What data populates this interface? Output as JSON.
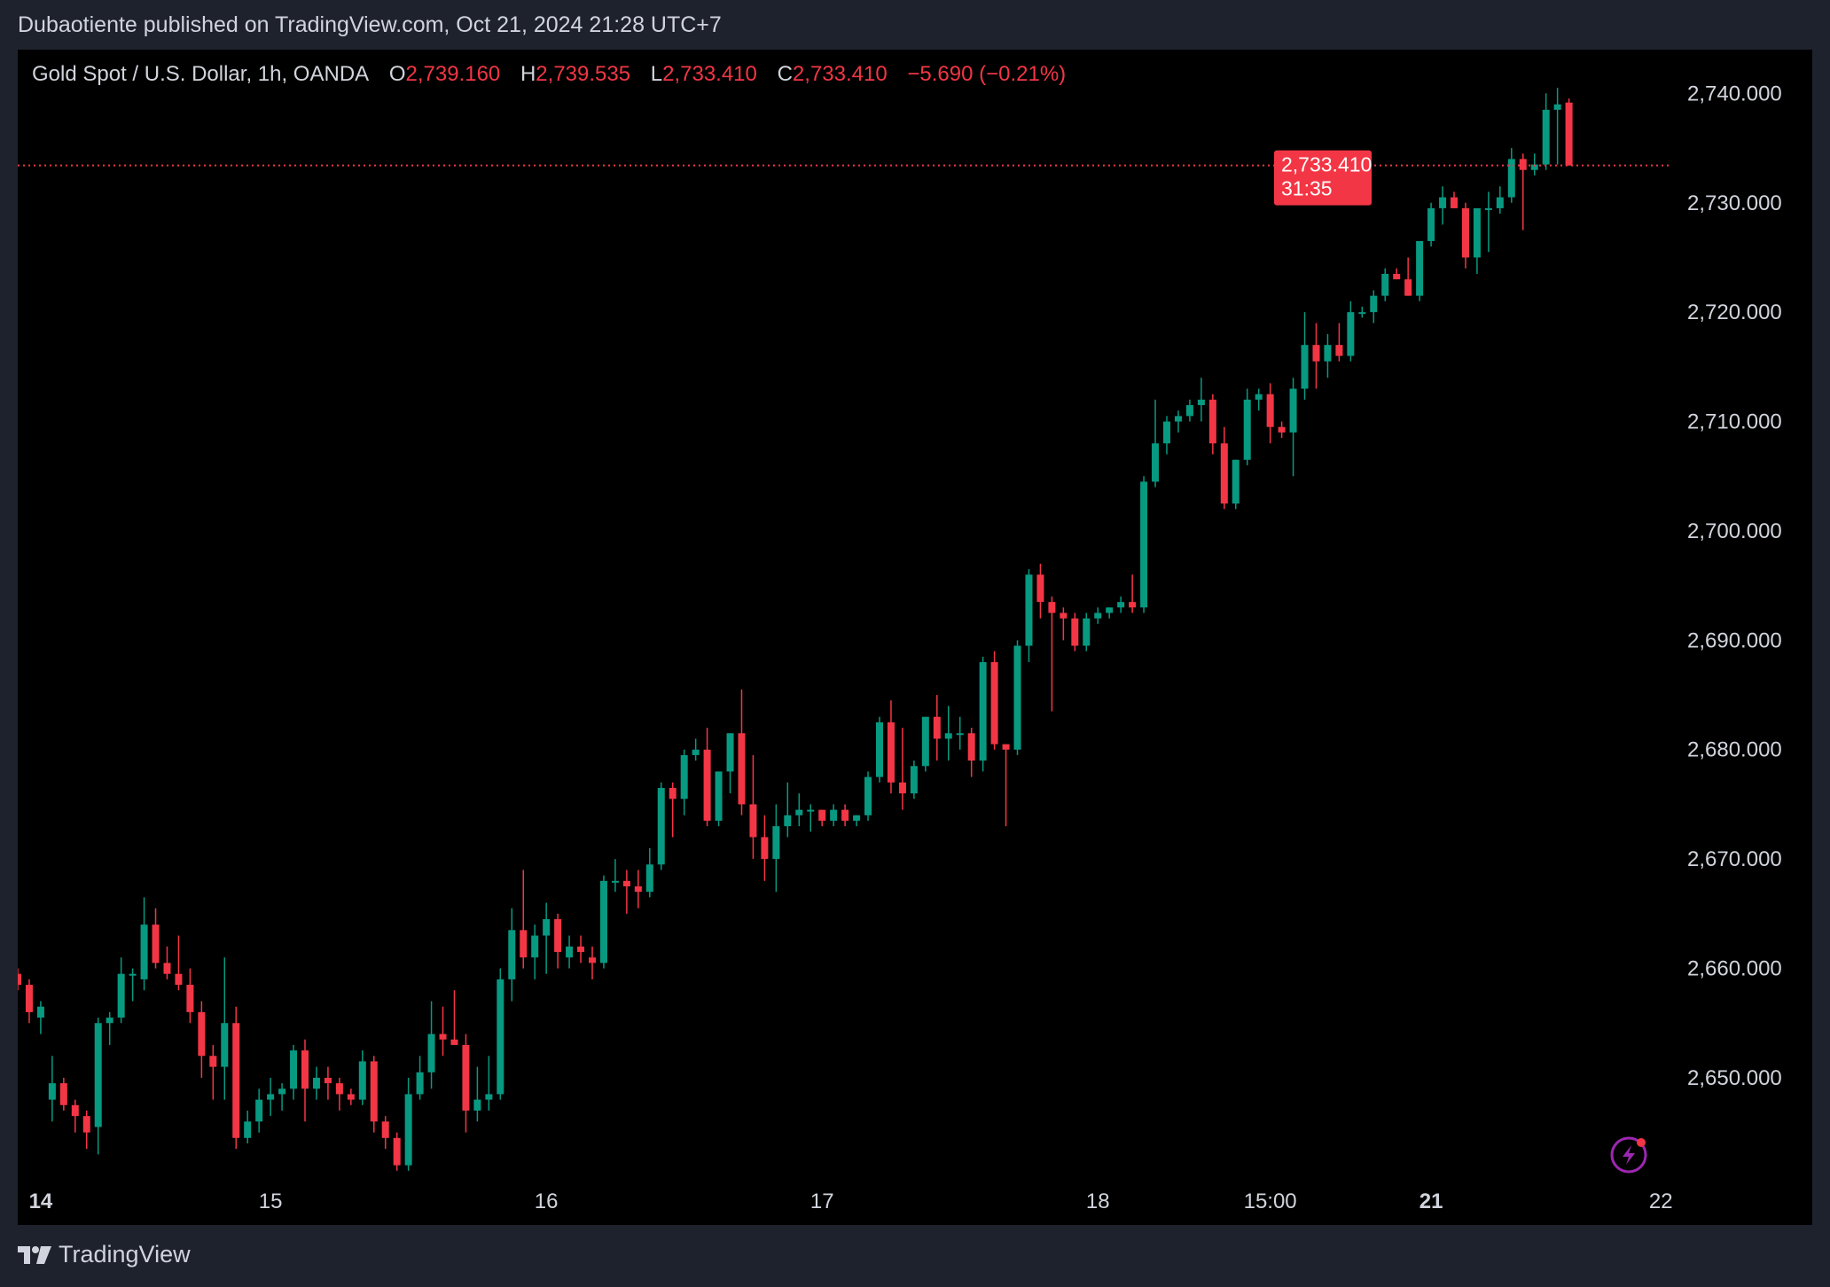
{
  "header": {
    "published_text": "Dubaotiente published on TradingView.com, Oct 21, 2024 21:28 UTC+7"
  },
  "legend": {
    "symbol": "Gold Spot / U.S. Dollar, 1h, OANDA",
    "o_label": "O",
    "o_value": "2,739.160",
    "h_label": "H",
    "h_value": "2,739.535",
    "l_label": "L",
    "l_value": "2,733.410",
    "c_label": "C",
    "c_value": "2,733.410",
    "change": "−5.690 (−0.21%)"
  },
  "price_badge": {
    "price": "2,733.410",
    "countdown": "31:35"
  },
  "footer": {
    "brand": "TradingView",
    "logo_icon": "tradingview-logo-icon"
  },
  "colors": {
    "up": "#089981",
    "down": "#f23645",
    "background": "#000000",
    "frame": "#1e222d",
    "axis_text": "#d1d4dc"
  },
  "chart_data": {
    "type": "candlestick",
    "interval": "1h",
    "ylim": [
      2641,
      2744
    ],
    "y_ticks": [
      "2,650.000",
      "2,660.000",
      "2,670.000",
      "2,680.000",
      "2,690.000",
      "2,700.000",
      "2,710.000",
      "2,720.000",
      "2,730.000",
      "2,740.000"
    ],
    "y_tick_values": [
      2650,
      2660,
      2670,
      2680,
      2690,
      2700,
      2710,
      2720,
      2730,
      2740
    ],
    "x_labels": [
      {
        "text": "14",
        "bar": 2,
        "bold": true
      },
      {
        "text": "15",
        "bar": 22,
        "bold": false
      },
      {
        "text": "16",
        "bar": 46,
        "bold": false
      },
      {
        "text": "17",
        "bar": 70,
        "bold": false
      },
      {
        "text": "18",
        "bar": 94,
        "bold": false
      },
      {
        "text": "15:00",
        "bar": 109,
        "bold": false
      },
      {
        "text": "21",
        "bar": 123,
        "bold": true
      },
      {
        "text": "22",
        "bar": 143,
        "bold": false
      }
    ],
    "last_price": 2733.41,
    "candles": [
      [
        2659.5,
        2660,
        2658,
        2658.5
      ],
      [
        2658.5,
        2659,
        2655,
        2656
      ],
      [
        2655.5,
        2657,
        2654,
        2656.5
      ],
      [
        2648,
        2652,
        2646,
        2649.5
      ],
      [
        2649.5,
        2650,
        2647,
        2647.5
      ],
      [
        2647.5,
        2648,
        2645,
        2646.5
      ],
      [
        2646.5,
        2647,
        2643.5,
        2645
      ],
      [
        2645.5,
        2655.5,
        2643,
        2655
      ],
      [
        2655,
        2656,
        2653,
        2655.5
      ],
      [
        2655.5,
        2661,
        2655,
        2659.5
      ],
      [
        2659.5,
        2660,
        2657,
        2659.5
      ],
      [
        2659,
        2666.5,
        2658,
        2664
      ],
      [
        2664,
        2665.5,
        2660,
        2660.5
      ],
      [
        2660.5,
        2662,
        2659,
        2659.5
      ],
      [
        2659.5,
        2663,
        2658,
        2658.5
      ],
      [
        2658.5,
        2660,
        2655,
        2656
      ],
      [
        2656,
        2657,
        2650,
        2652
      ],
      [
        2652,
        2653,
        2648,
        2651
      ],
      [
        2651,
        2661,
        2648,
        2655
      ],
      [
        2655,
        2656.5,
        2643.5,
        2644.5
      ],
      [
        2644.5,
        2647,
        2644,
        2646
      ],
      [
        2646,
        2649,
        2645,
        2648
      ],
      [
        2648,
        2650,
        2646.5,
        2648.5
      ],
      [
        2648.5,
        2649.5,
        2647,
        2649
      ],
      [
        2649,
        2653,
        2648,
        2652.5
      ],
      [
        2652.5,
        2653.5,
        2646,
        2649
      ],
      [
        2649,
        2651,
        2648,
        2650
      ],
      [
        2650,
        2651,
        2648,
        2649.5
      ],
      [
        2649.5,
        2650,
        2647,
        2648.5
      ],
      [
        2648.5,
        2649,
        2647.5,
        2648
      ],
      [
        2648,
        2652.5,
        2647.5,
        2651.5
      ],
      [
        2651.5,
        2652,
        2645,
        2646
      ],
      [
        2646,
        2646.5,
        2643.5,
        2644.5
      ],
      [
        2644.5,
        2645,
        2641.5,
        2642
      ],
      [
        2642,
        2650,
        2641.5,
        2648.5
      ],
      [
        2648.5,
        2652,
        2648,
        2650.5
      ],
      [
        2650.5,
        2657,
        2649,
        2654
      ],
      [
        2654,
        2656.5,
        2652,
        2653.5
      ],
      [
        2653.5,
        2658,
        2653,
        2653
      ],
      [
        2653,
        2654,
        2645,
        2647
      ],
      [
        2647,
        2651,
        2646,
        2648
      ],
      [
        2648,
        2652,
        2647,
        2648.5
      ],
      [
        2648.5,
        2660,
        2648,
        2659
      ],
      [
        2659,
        2665.5,
        2657,
        2663.5
      ],
      [
        2663.5,
        2669,
        2660,
        2661
      ],
      [
        2661,
        2664,
        2659,
        2663
      ],
      [
        2663,
        2666,
        2659.5,
        2664.5
      ],
      [
        2664.5,
        2665,
        2660,
        2661.5
      ],
      [
        2661,
        2663,
        2660,
        2662
      ],
      [
        2662,
        2663,
        2660.5,
        2661.5
      ],
      [
        2661,
        2662,
        2659,
        2660.5
      ],
      [
        2660.5,
        2668.5,
        2660,
        2668
      ],
      [
        2668,
        2670,
        2667,
        2668
      ],
      [
        2668,
        2669,
        2665,
        2667.5
      ],
      [
        2667.5,
        2669,
        2665.5,
        2667
      ],
      [
        2667,
        2671,
        2666.5,
        2669.5
      ],
      [
        2669.5,
        2677,
        2669,
        2676.5
      ],
      [
        2676.5,
        2677,
        2672,
        2675.5
      ],
      [
        2675.5,
        2680,
        2674,
        2679.5
      ],
      [
        2679.5,
        2681,
        2679,
        2680
      ],
      [
        2680,
        2682,
        2673,
        2673.5
      ],
      [
        2673.5,
        2678,
        2673,
        2678
      ],
      [
        2678,
        2681.5,
        2676,
        2681.5
      ],
      [
        2681.5,
        2685.5,
        2674,
        2675
      ],
      [
        2675,
        2679.5,
        2670,
        2672
      ],
      [
        2672,
        2674,
        2668,
        2670
      ],
      [
        2670,
        2675,
        2667,
        2673
      ],
      [
        2673,
        2677,
        2672,
        2674
      ],
      [
        2674,
        2676,
        2673,
        2674.5
      ],
      [
        2674.5,
        2675,
        2672.5,
        2674.5
      ],
      [
        2674.5,
        2674.5,
        2673,
        2673.5
      ],
      [
        2673.5,
        2675,
        2673,
        2674.5
      ],
      [
        2674.5,
        2675,
        2673,
        2673.5
      ],
      [
        2673.5,
        2674,
        2673,
        2674
      ],
      [
        2674,
        2678,
        2673.5,
        2677.5
      ],
      [
        2677.5,
        2683,
        2677,
        2682.5
      ],
      [
        2682.5,
        2684.5,
        2676,
        2677
      ],
      [
        2677,
        2682,
        2674.5,
        2676
      ],
      [
        2676,
        2679,
        2675.5,
        2678.5
      ],
      [
        2678.5,
        2683,
        2678,
        2683
      ],
      [
        2683,
        2685,
        2679,
        2681
      ],
      [
        2681,
        2684,
        2679,
        2681.5
      ],
      [
        2681.5,
        2683,
        2680,
        2681.5
      ],
      [
        2681.5,
        2682,
        2677.5,
        2679
      ],
      [
        2679,
        2688.5,
        2678,
        2688
      ],
      [
        2688,
        2689,
        2680,
        2680.5
      ],
      [
        2680.5,
        2680.5,
        2673,
        2680
      ],
      [
        2680,
        2690,
        2679.5,
        2689.5
      ],
      [
        2689.5,
        2696.5,
        2688,
        2696
      ],
      [
        2696,
        2697,
        2692,
        2693.5
      ],
      [
        2693.5,
        2694,
        2683.5,
        2692.5
      ],
      [
        2692.5,
        2693,
        2690,
        2692
      ],
      [
        2692,
        2692.5,
        2689,
        2689.5
      ],
      [
        2689.5,
        2692.5,
        2689,
        2692
      ],
      [
        2692,
        2693,
        2691.5,
        2692.5
      ],
      [
        2692.5,
        2693,
        2692,
        2693
      ],
      [
        2693,
        2694,
        2692.5,
        2693.5
      ],
      [
        2693.5,
        2696,
        2692.5,
        2693
      ],
      [
        2693,
        2705,
        2692.5,
        2704.5
      ],
      [
        2704.5,
        2712,
        2704,
        2708
      ],
      [
        2708,
        2710.5,
        2707,
        2710
      ],
      [
        2710,
        2711,
        2709,
        2710.5
      ],
      [
        2710.5,
        2712,
        2710,
        2711.5
      ],
      [
        2711.5,
        2714,
        2710,
        2712
      ],
      [
        2712,
        2712.5,
        2707,
        2708
      ],
      [
        2708,
        2709.5,
        2702,
        2702.5
      ],
      [
        2702.5,
        2706.5,
        2702,
        2706.5
      ],
      [
        2706.5,
        2713,
        2706,
        2712
      ],
      [
        2712,
        2713,
        2711,
        2712.5
      ],
      [
        2712.5,
        2713.5,
        2708,
        2709.5
      ],
      [
        2709.5,
        2710,
        2708.5,
        2709
      ],
      [
        2709,
        2714,
        2705,
        2713
      ],
      [
        2713,
        2720,
        2712,
        2717
      ],
      [
        2717,
        2719,
        2713,
        2715.5
      ],
      [
        2715.5,
        2718,
        2714,
        2717
      ],
      [
        2717,
        2719,
        2715.5,
        2716
      ],
      [
        2716,
        2721,
        2715.5,
        2720
      ],
      [
        2720,
        2720.5,
        2719.5,
        2720
      ],
      [
        2720,
        2722,
        2719,
        2721.5
      ],
      [
        2721.5,
        2724,
        2721,
        2723.5
      ],
      [
        2723.5,
        2724,
        2723,
        2723
      ],
      [
        2723,
        2725,
        2721.5,
        2721.5
      ],
      [
        2721.5,
        2726.5,
        2721,
        2726.5
      ],
      [
        2726.5,
        2730,
        2726,
        2729.5
      ],
      [
        2729.5,
        2731.5,
        2728,
        2730.5
      ],
      [
        2730.5,
        2731,
        2729.5,
        2729.5
      ],
      [
        2729.5,
        2730,
        2724,
        2725
      ],
      [
        2725,
        2729.5,
        2723.5,
        2729.5
      ],
      [
        2729.5,
        2731,
        2725.5,
        2729.5
      ],
      [
        2729.5,
        2731.5,
        2729,
        2730.5
      ],
      [
        2730.5,
        2735,
        2730,
        2734
      ],
      [
        2734,
        2734.5,
        2727.5,
        2733
      ],
      [
        2733,
        2734.5,
        2732.5,
        2733.5
      ],
      [
        2733.5,
        2740,
        2733,
        2738.5
      ],
      [
        2738.5,
        2740.5,
        2733.5,
        2739
      ],
      [
        2739.16,
        2739.535,
        2733.41,
        2733.41
      ]
    ]
  }
}
